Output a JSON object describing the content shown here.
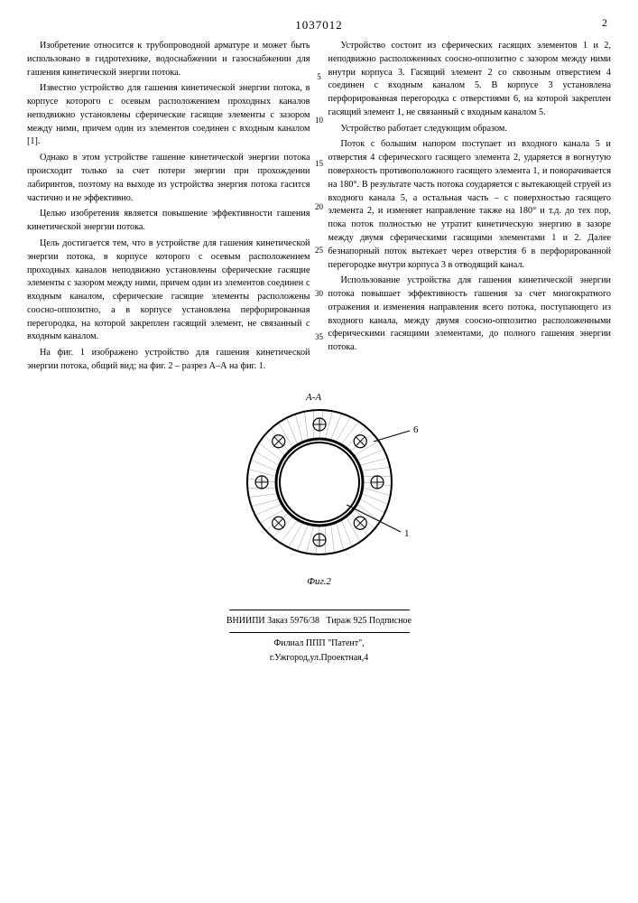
{
  "doc_number": "1037012",
  "right_page": "2",
  "line_markers": [
    "5",
    "10",
    "15",
    "20",
    "25",
    "30",
    "35"
  ],
  "left": {
    "p1": "Изобретение относится к трубопроводной арматуре и может быть использовано в гидротехнике, водоснабжении и газоснабжении для гашения кинетической энергии потока.",
    "p2": "Известно устройство для гашения кинетической энергии потока, в корпусе которого с осевым расположением проходных каналов неподвижно установлены сферические гасящие элементы с зазором между ними, причем один из элементов соединен с входным каналом [1].",
    "p3": "Однако в этом устройстве гашение кинетической энергии потока происходит только за счет потери энергии при прохождении лабиринтов, поэтому на выходе из устройства энергия потока гасится частично и не эффективно.",
    "p4": "Целью изобретения является повышение эффективности гашения кинетической энергии потока.",
    "p5": "Цель достигается тем, что в устройстве для гашения кинетической энергии потока, в корпусе которого с осевым расположением проходных каналов неподвижно установлены сферические гасящие элементы с зазором между ними, причем один из элементов соединен с входным каналом, сферические гасящие элементы расположены соосно-оппозитно, а в корпусе установлена перфорированная перегородка, на которой закреплен гасящий элемент, не связанный с входным каналом.",
    "p6": "На фиг. 1 изображено устройство для гашения кинетической энергии потока, общий вид; на фиг. 2 – разрез А–А на фиг. 1."
  },
  "right": {
    "p1": "Устройство состоит из сферических гасящих элементов 1 и 2, неподвижно расположенных соосно-оппозитно с зазором между ними внутри корпуса 3. Гасящий элемент 2 со сквозным отверстием 4 соединен с входным каналом 5. В корпусе 3 установлена перфорированная перегородка с отверстиями 6, на которой закреплен гасящий элемент 1, не связанный с входным каналом 5.",
    "p2": "Устройство работает следующим образом.",
    "p3": "Поток с большим напором поступает из входного канала 5 и отверстия 4 сферического гасящего элемента 2, ударяется в вогнутую поверхность противоположного гасящего элемента 1, и поворачивается на 180°. В результате часть потока соударяется с вытекающей струей из входного канала 5, а остальная часть – с поверхностью гасящего элемента 2, и изменяет направление также на 180° и т.д. до тех пор, пока поток полностью не утратит кинетическую энергию в зазоре между двумя сферическими гасящими элементами 1 и 2. Далее безнапорный поток вытекает через отверстия 6 в перфорированной перегородке внутри корпуса 3 в отводящий канал.",
    "p4": "Использование устройства для гашения кинетической энергии потока повышает эффективность гашения за счет многократного отражения и изменения направления всего потока, поступающего из входного канала, между двумя соосно-оппозитно расположенными сферическими гасящими элементами, до полного гашения энергии потока."
  },
  "figure": {
    "section_label": "А-А",
    "caption": "Фиг.2",
    "callout_6": "6",
    "callout_1": "1",
    "outer_r": 80,
    "inner_r1": 48,
    "inner_r2": 44,
    "hole_r": 7,
    "hole_ring_r": 64,
    "stroke": "#000000"
  },
  "footer": {
    "line1": "ВНИИПИ Заказ 5976/38",
    "line2": "Тираж 925   Подписное",
    "line3": "Филиал ППП \"Патент\",",
    "line4": "г.Ужгород,ул.Проектная,4"
  }
}
